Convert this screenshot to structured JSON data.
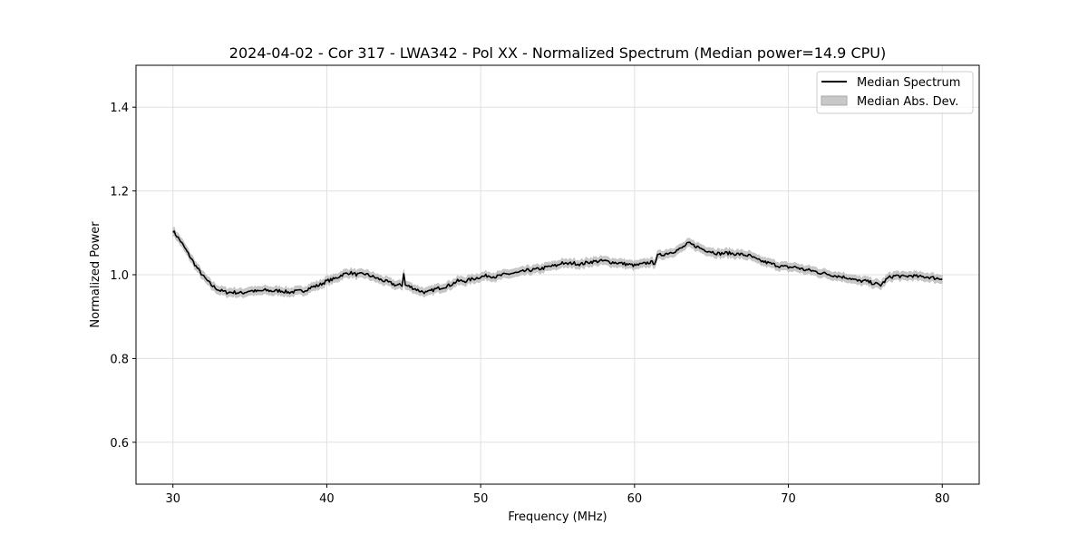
{
  "chart_data": {
    "type": "line",
    "title": "2024-04-02 - Cor 317 - LWA342 - Pol XX - Normalized Spectrum (Median power=14.9 CPU)",
    "xlabel": "Frequency (MHz)",
    "ylabel": "Normalized Power",
    "xlim": [
      27.6,
      82.4
    ],
    "ylim": [
      0.5,
      1.5
    ],
    "xticks": [
      30,
      40,
      50,
      60,
      70,
      80
    ],
    "yticks": [
      0.6,
      0.8,
      1.0,
      1.2,
      1.4
    ],
    "xtick_labels": [
      "30",
      "40",
      "50",
      "60",
      "70",
      "80"
    ],
    "ytick_labels": [
      "0.6",
      "0.8",
      "1.0",
      "1.2",
      "1.4"
    ],
    "grid": true,
    "legend_position": "top-right",
    "series": [
      {
        "name": "Median Spectrum",
        "color": "#000000",
        "x": [
          30.0,
          30.5,
          31.0,
          31.5,
          32.0,
          32.5,
          33.0,
          33.5,
          34.0,
          34.5,
          35.0,
          35.5,
          36.0,
          36.5,
          37.0,
          37.5,
          38.0,
          38.5,
          39.0,
          39.5,
          40.0,
          40.5,
          41.0,
          41.5,
          42.0,
          42.5,
          43.0,
          43.5,
          44.0,
          44.5,
          44.9,
          45.0,
          45.1,
          45.5,
          46.0,
          46.5,
          47.0,
          47.5,
          48.0,
          48.5,
          49.0,
          49.5,
          50.0,
          50.5,
          51.0,
          51.5,
          52.0,
          52.5,
          53.0,
          53.5,
          54.0,
          54.5,
          55.0,
          55.3,
          55.5,
          56.0,
          56.5,
          57.0,
          57.5,
          58.0,
          58.5,
          59.0,
          59.5,
          60.0,
          60.5,
          61.0,
          61.3,
          61.5,
          62.0,
          62.5,
          63.0,
          63.5,
          64.0,
          64.5,
          65.0,
          65.5,
          66.0,
          66.5,
          67.0,
          67.5,
          68.0,
          68.5,
          69.0,
          69.5,
          70.0,
          70.5,
          71.0,
          71.5,
          72.0,
          72.5,
          73.0,
          73.5,
          74.0,
          74.5,
          75.0,
          75.5,
          76.0,
          76.5,
          77.0,
          77.5,
          78.0,
          78.5,
          79.0,
          79.5,
          80.0
        ],
        "y": [
          1.105,
          1.08,
          1.05,
          1.02,
          0.995,
          0.975,
          0.963,
          0.958,
          0.958,
          0.956,
          0.962,
          0.96,
          0.963,
          0.961,
          0.962,
          0.958,
          0.96,
          0.962,
          0.97,
          0.975,
          0.985,
          0.99,
          1.0,
          1.005,
          1.0,
          1.002,
          0.995,
          0.988,
          0.982,
          0.975,
          0.975,
          1.005,
          0.975,
          0.97,
          0.962,
          0.957,
          0.965,
          0.97,
          0.975,
          0.985,
          0.985,
          0.99,
          0.995,
          0.998,
          0.995,
          1.0,
          1.003,
          1.005,
          1.01,
          1.012,
          1.015,
          1.02,
          1.022,
          1.03,
          1.025,
          1.028,
          1.025,
          1.03,
          1.032,
          1.033,
          1.03,
          1.028,
          1.025,
          1.022,
          1.025,
          1.03,
          1.028,
          1.045,
          1.05,
          1.055,
          1.062,
          1.075,
          1.068,
          1.06,
          1.055,
          1.05,
          1.052,
          1.05,
          1.048,
          1.045,
          1.035,
          1.03,
          1.025,
          1.02,
          1.018,
          1.018,
          1.012,
          1.01,
          1.005,
          1.002,
          0.998,
          0.995,
          0.992,
          0.985,
          0.985,
          0.98,
          0.975,
          0.993,
          0.998,
          0.995,
          0.998,
          0.995,
          0.995,
          0.992,
          0.99
        ]
      },
      {
        "name": "Median Abs. Dev.",
        "color": "#c8c8c8",
        "type": "band",
        "half_width": 0.01
      }
    ]
  }
}
